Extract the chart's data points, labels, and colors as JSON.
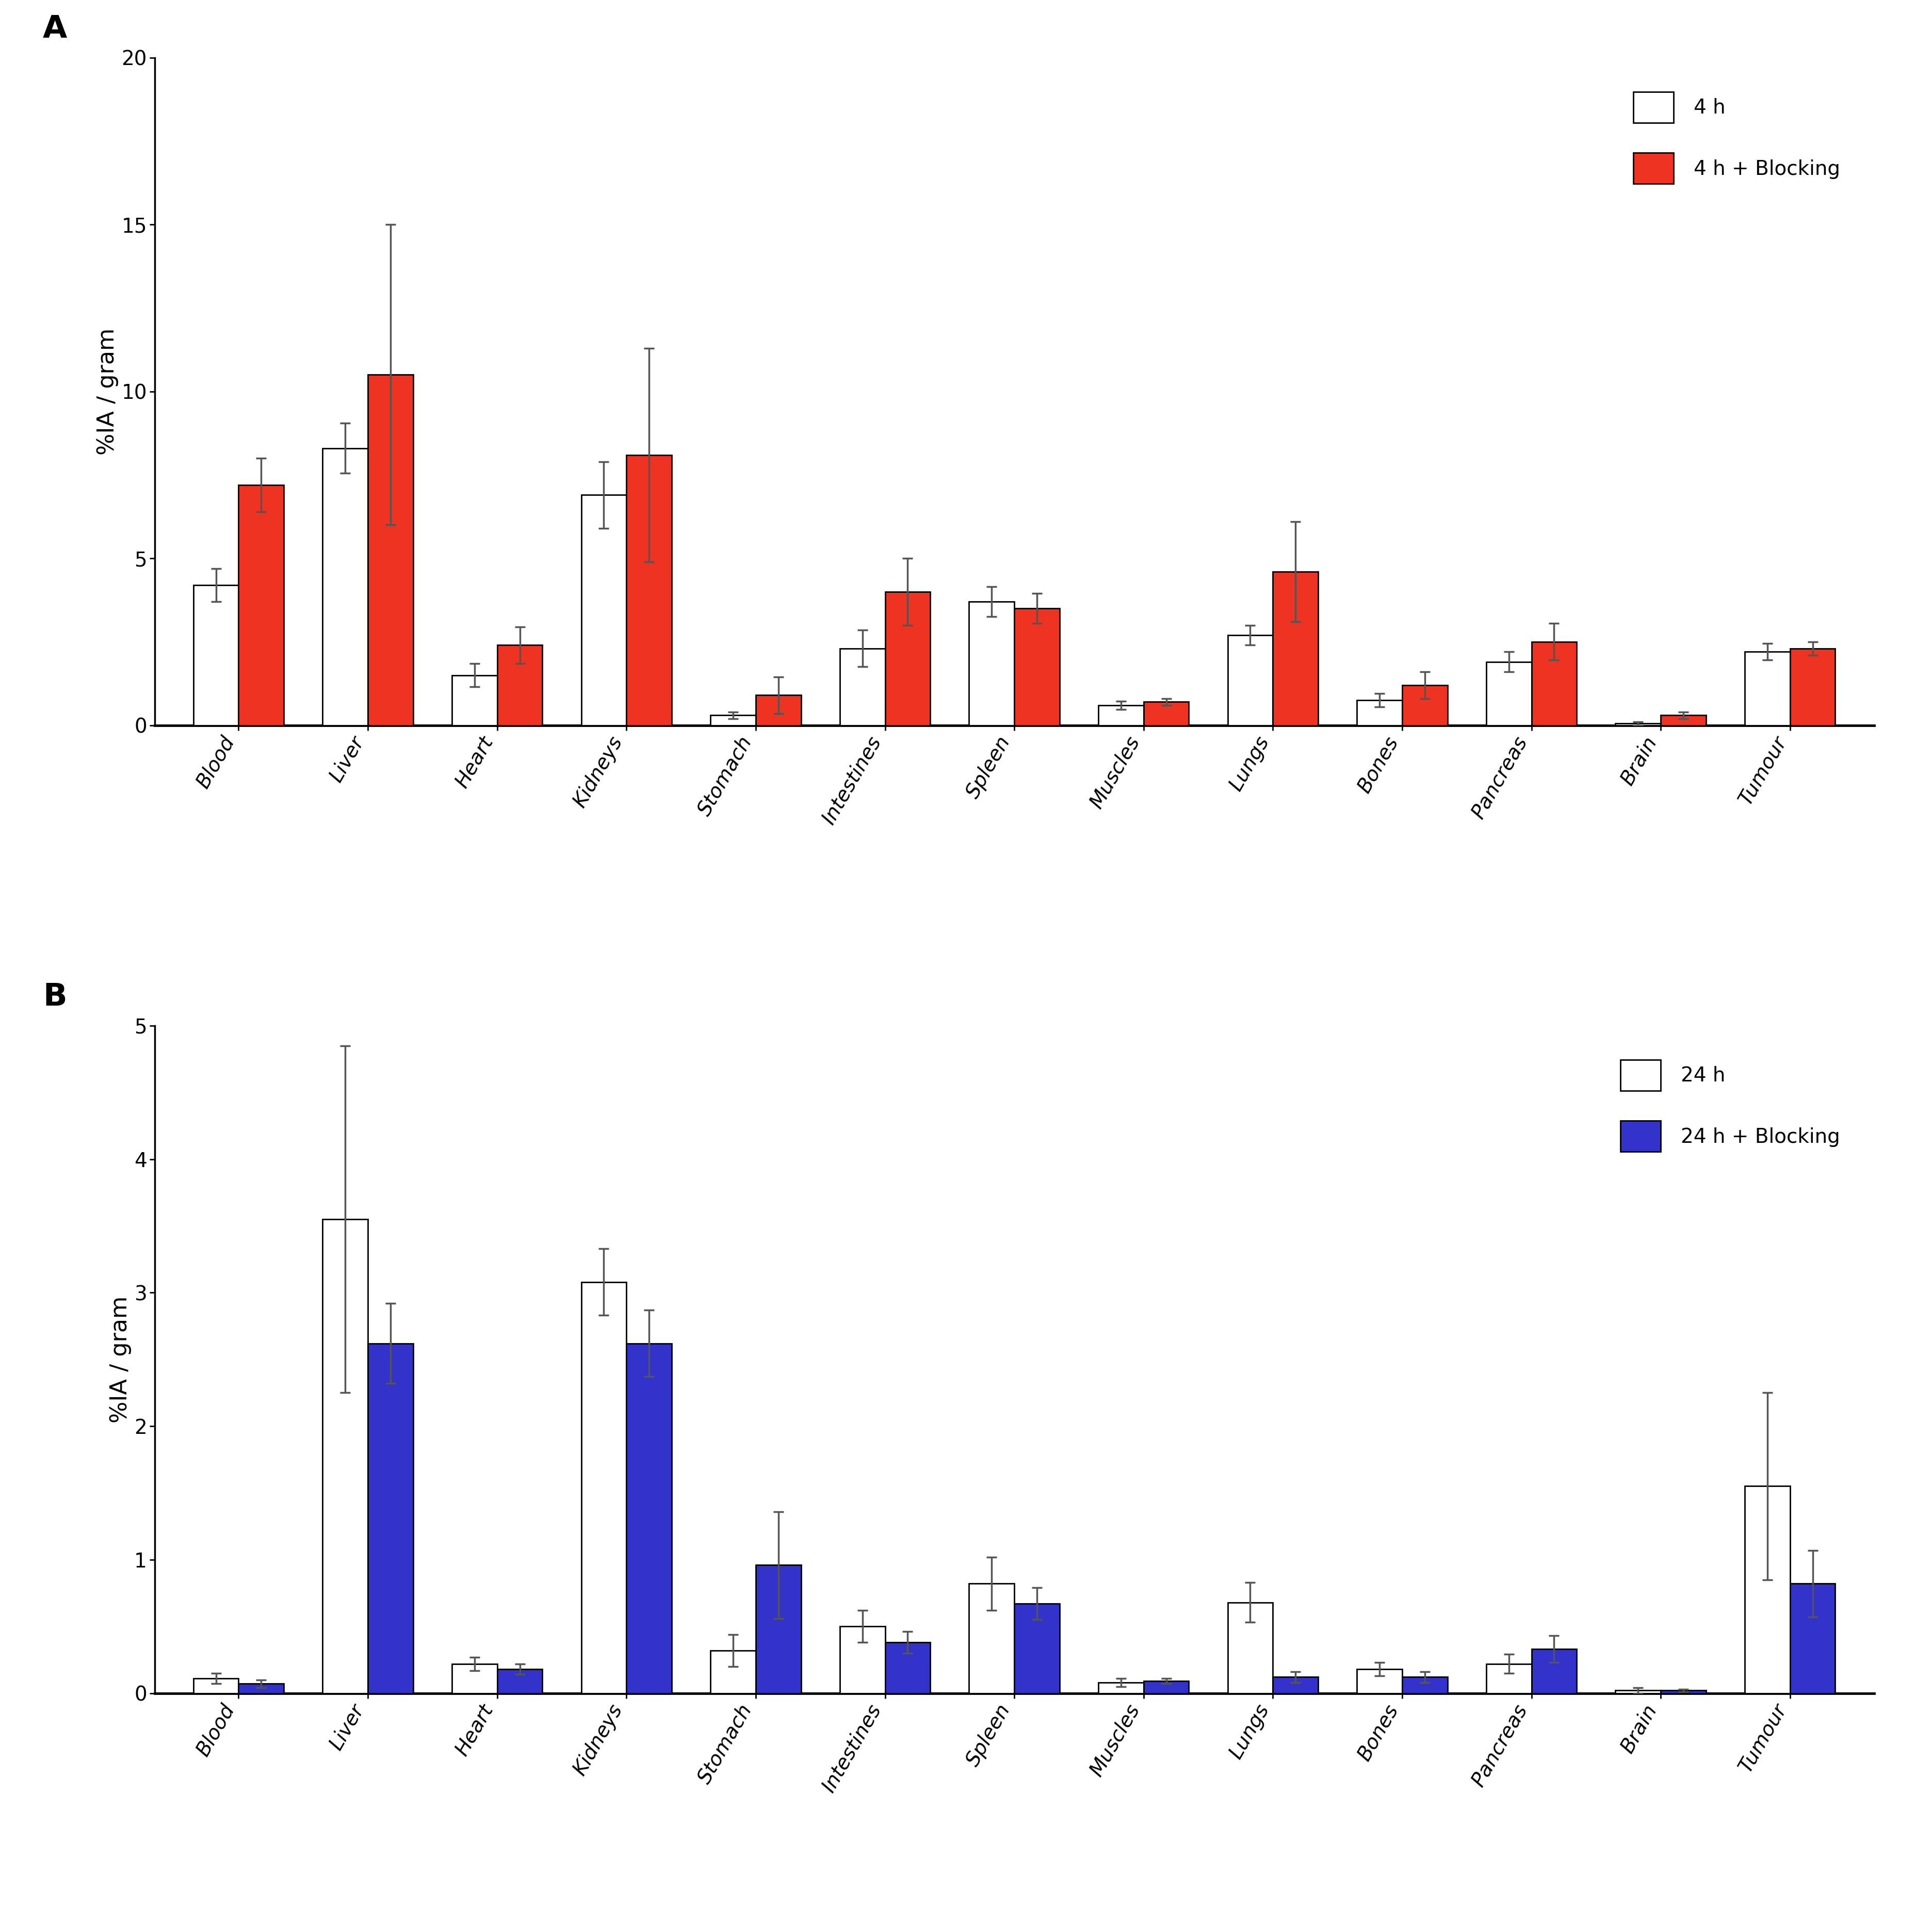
{
  "categories": [
    "Blood",
    "Liver",
    "Heart",
    "Kidneys",
    "Stomach",
    "Intestines",
    "Spleen",
    "Muscles",
    "Lungs",
    "Bones",
    "Pancreas",
    "Brain",
    "Tumour"
  ],
  "panel_A": {
    "title": "A",
    "ylabel": "%IA / gram",
    "ylim": [
      0,
      20
    ],
    "yticks": [
      0,
      5,
      10,
      15,
      20
    ],
    "series1_label": "4 h",
    "series2_label": "4 h + Blocking",
    "series1_color": "#FFFFFF",
    "series2_color": "#EE3322",
    "series1_values": [
      4.2,
      8.3,
      1.5,
      6.9,
      0.3,
      2.3,
      3.7,
      0.6,
      2.7,
      0.75,
      1.9,
      0.05,
      2.2
    ],
    "series2_values": [
      7.2,
      10.5,
      2.4,
      8.1,
      0.9,
      4.0,
      3.5,
      0.7,
      4.6,
      1.2,
      2.5,
      0.3,
      2.3
    ],
    "series1_errors": [
      0.5,
      0.75,
      0.35,
      1.0,
      0.1,
      0.55,
      0.45,
      0.12,
      0.3,
      0.2,
      0.3,
      0.05,
      0.25
    ],
    "series2_errors": [
      0.8,
      4.5,
      0.55,
      3.2,
      0.55,
      1.0,
      0.45,
      0.1,
      1.5,
      0.4,
      0.55,
      0.1,
      0.2
    ]
  },
  "panel_B": {
    "title": "B",
    "ylabel": "%IA / gram",
    "ylim": [
      0,
      5
    ],
    "yticks": [
      0,
      1,
      2,
      3,
      4,
      5
    ],
    "series1_label": "24 h",
    "series2_label": "24 h + Blocking",
    "series1_color": "#FFFFFF",
    "series2_color": "#3333CC",
    "series1_values": [
      0.11,
      3.55,
      0.22,
      3.08,
      0.32,
      0.5,
      0.82,
      0.08,
      0.68,
      0.18,
      0.22,
      0.02,
      1.55
    ],
    "series2_values": [
      0.07,
      2.62,
      0.18,
      2.62,
      0.96,
      0.38,
      0.67,
      0.09,
      0.12,
      0.12,
      0.33,
      0.02,
      0.82
    ],
    "series1_errors": [
      0.04,
      1.3,
      0.05,
      0.25,
      0.12,
      0.12,
      0.2,
      0.03,
      0.15,
      0.05,
      0.07,
      0.02,
      0.7
    ],
    "series2_errors": [
      0.03,
      0.3,
      0.04,
      0.25,
      0.4,
      0.08,
      0.12,
      0.02,
      0.04,
      0.04,
      0.1,
      0.01,
      0.25
    ]
  },
  "bar_width": 0.35,
  "edge_color": "#000000",
  "error_color": "#555555",
  "background_color": "#FFFFFF",
  "label_fontsize": 32,
  "tick_fontsize": 28,
  "panel_label_fontsize": 44,
  "legend_fontsize": 28,
  "xtick_rotation": 60
}
